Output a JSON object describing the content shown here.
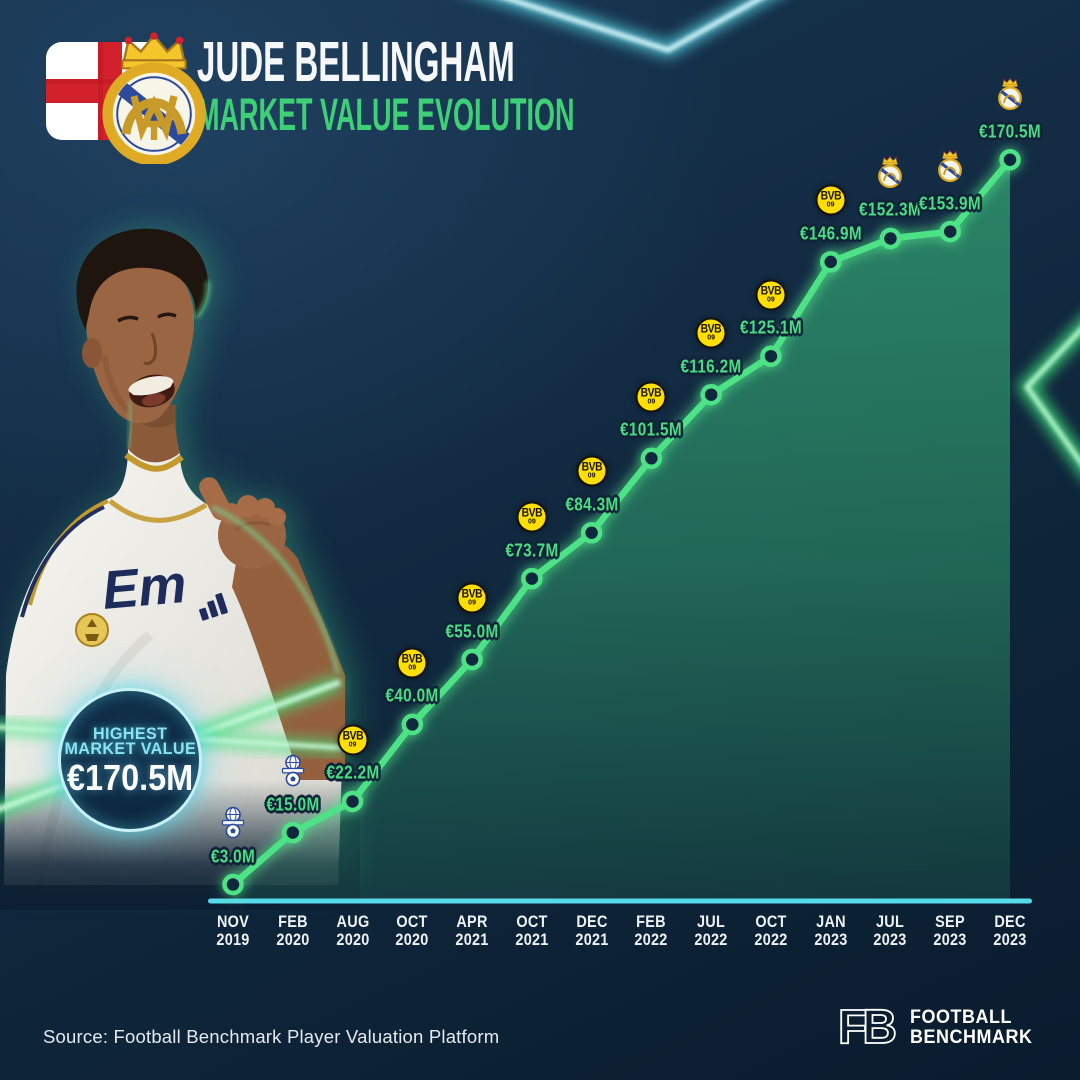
{
  "poster": {
    "title": "JUDE BELLINGHAM",
    "subtitle": "MARKET VALUE EVOLUTION",
    "nationality_icon": "england-flag",
    "club_icon": "real-madrid-crest"
  },
  "highlight": {
    "line1": "HIGHEST",
    "line2": "MARKET VALUE",
    "value": "€170.5M"
  },
  "chart_data": {
    "type": "area",
    "title": "Jude Bellingham market value evolution",
    "unit": "EUR million",
    "ylim": [
      0,
      180
    ],
    "grid": false,
    "legend": "none",
    "line_color": "#4ee287",
    "area_color": "#3ecf82",
    "axis_color": "#57dbe8",
    "value_label_color": "#4adc84",
    "tick_label_color": "#eef2f6",
    "points": [
      {
        "month": "NOV",
        "year": "2019",
        "value": 3.0,
        "label": "€3.0M",
        "club": "birmingham-city"
      },
      {
        "month": "FEB",
        "year": "2020",
        "value": 15.0,
        "label": "€15.0M",
        "club": "birmingham-city"
      },
      {
        "month": "AUG",
        "year": "2020",
        "value": 22.2,
        "label": "€22.2M",
        "club": "borussia-dortmund"
      },
      {
        "month": "OCT",
        "year": "2020",
        "value": 40.0,
        "label": "€40.0M",
        "club": "borussia-dortmund"
      },
      {
        "month": "APR",
        "year": "2021",
        "value": 55.0,
        "label": "€55.0M",
        "club": "borussia-dortmund"
      },
      {
        "month": "OCT",
        "year": "2021",
        "value": 73.7,
        "label": "€73.7M",
        "club": "borussia-dortmund"
      },
      {
        "month": "DEC",
        "year": "2021",
        "value": 84.3,
        "label": "€84.3M",
        "club": "borussia-dortmund"
      },
      {
        "month": "FEB",
        "year": "2022",
        "value": 101.5,
        "label": "€101.5M",
        "club": "borussia-dortmund"
      },
      {
        "month": "JUL",
        "year": "2022",
        "value": 116.2,
        "label": "€116.2M",
        "club": "borussia-dortmund"
      },
      {
        "month": "OCT",
        "year": "2022",
        "value": 125.1,
        "label": "€125.1M",
        "club": "borussia-dortmund"
      },
      {
        "month": "JAN",
        "year": "2023",
        "value": 146.9,
        "label": "€146.9M",
        "club": "borussia-dortmund"
      },
      {
        "month": "JUL",
        "year": "2023",
        "value": 152.3,
        "label": "€152.3M",
        "club": "real-madrid"
      },
      {
        "month": "SEP",
        "year": "2023",
        "value": 153.9,
        "label": "€153.9M",
        "club": "real-madrid"
      },
      {
        "month": "DEC",
        "year": "2023",
        "value": 170.5,
        "label": "€170.5M",
        "club": "real-madrid"
      }
    ],
    "clubs": {
      "birmingham-city": {
        "name": "Birmingham City"
      },
      "borussia-dortmund": {
        "name": "Borussia Dortmund",
        "badge_line1": "BVB",
        "badge_line2": "09"
      },
      "real-madrid": {
        "name": "Real Madrid"
      }
    }
  },
  "player_photo": {
    "jersey_text": "Em"
  },
  "footer": {
    "source": "Source: Football Benchmark Player Valuation Platform",
    "brand_icon": "FB",
    "brand_line1": "FOOTBALL",
    "brand_line2": "BENCHMARK"
  }
}
